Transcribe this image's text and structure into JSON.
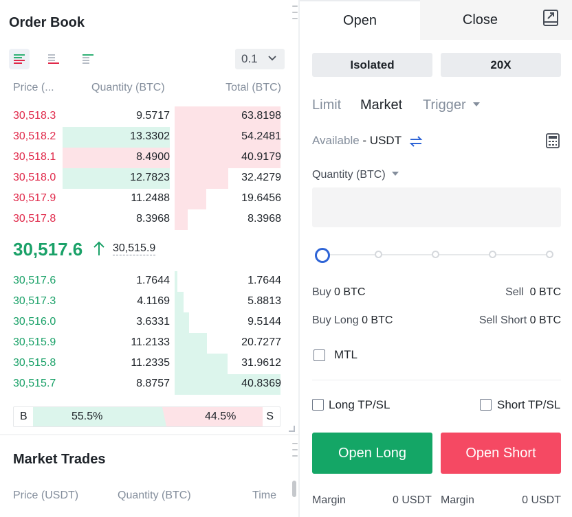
{
  "order_book": {
    "title": "Order Book",
    "step_value": "0.1",
    "columns": {
      "price": "Price (...",
      "quantity": "Quantity (BTC)",
      "total": "Total (BTC)"
    },
    "asks": [
      {
        "price": "30,518.3",
        "quantity": "9.5717",
        "total": "63.8198"
      },
      {
        "price": "30,518.2",
        "quantity": "13.3302",
        "total": "54.2481"
      },
      {
        "price": "30,518.1",
        "quantity": "8.4900",
        "total": "40.9179"
      },
      {
        "price": "30,518.0",
        "quantity": "12.7823",
        "total": "32.4279"
      },
      {
        "price": "30,517.9",
        "quantity": "11.2488",
        "total": "19.6456"
      },
      {
        "price": "30,517.8",
        "quantity": "8.3968",
        "total": "8.3968"
      }
    ],
    "last_price": "30,517.6",
    "mark_price": "30,515.9",
    "bids": [
      {
        "price": "30,517.6",
        "quantity": "1.7644",
        "total": "1.7644"
      },
      {
        "price": "30,517.3",
        "quantity": "4.1169",
        "total": "5.8813"
      },
      {
        "price": "30,516.0",
        "quantity": "3.6331",
        "total": "9.5144"
      },
      {
        "price": "30,515.9",
        "quantity": "11.2133",
        "total": "20.7277"
      },
      {
        "price": "30,515.8",
        "quantity": "11.2335",
        "total": "31.9612"
      },
      {
        "price": "30,515.7",
        "quantity": "8.8757",
        "total": "40.8369"
      }
    ],
    "ratio": {
      "buy_label": "B",
      "sell_label": "S",
      "buy_pct": "55.5%",
      "sell_pct": "44.5%"
    }
  },
  "market_trades": {
    "title": "Market Trades",
    "columns": {
      "price": "Price (USDT)",
      "quantity": "Quantity (BTC)",
      "time": "Time"
    }
  },
  "trade_panel": {
    "tabs": {
      "open": "Open",
      "close": "Close"
    },
    "margin_mode": "Isolated",
    "leverage": "20X",
    "order_types": {
      "limit": "Limit",
      "market": "Market",
      "trigger": "Trigger"
    },
    "available_label": "Available",
    "available_value": "- USDT",
    "quantity_label": "Quantity (BTC)",
    "quantity_value": "",
    "buy": {
      "label": "Buy",
      "value": "0 BTC"
    },
    "sell": {
      "label": "Sell",
      "value": "0 BTC"
    },
    "buy_long": {
      "label": "Buy Long",
      "value": "0 BTC"
    },
    "sell_short": {
      "label": "Sell Short",
      "value": "0 BTC"
    },
    "mtl_label": "MTL",
    "long_tpsl_label": "Long TP/SL",
    "short_tpsl_label": "Short TP/SL",
    "open_long": "Open Long",
    "open_short": "Open Short",
    "margin_long": {
      "label": "Margin",
      "value": "0 USDT"
    },
    "margin_short": {
      "label": "Margin",
      "value": "0 USDT"
    }
  },
  "colors": {
    "ask": "#e0294a",
    "bid": "#1aa168",
    "long_button": "#14a666",
    "short_button": "#f54963"
  }
}
